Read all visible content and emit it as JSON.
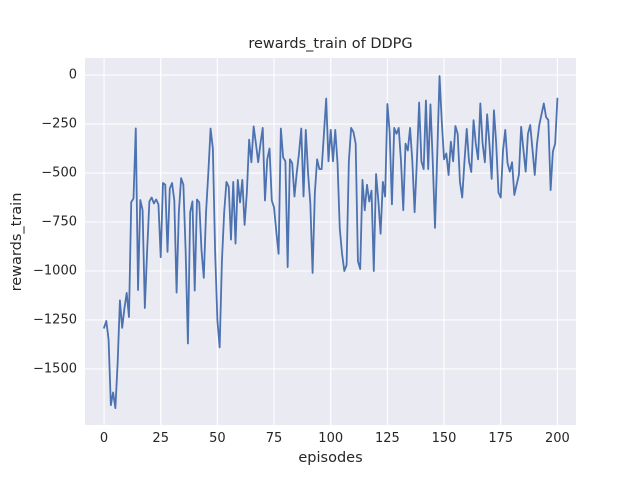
{
  "chart_data": {
    "type": "line",
    "title": "rewards_train of DDPG",
    "xlabel": "episodes",
    "ylabel": "rewards_train",
    "x_ticks": [
      0,
      25,
      50,
      75,
      100,
      125,
      150,
      175,
      200
    ],
    "y_ticks": [
      0,
      -250,
      -500,
      -750,
      -1000,
      -1250,
      -1500
    ],
    "xlim": [
      -8.4,
      208.2
    ],
    "ylim": [
      -1786,
      87
    ],
    "grid": true,
    "legend": "none",
    "line_color": "#4c72b0",
    "axes_background": "#eaeaf2",
    "grid_color": "#ffffff",
    "text_color": "#262626",
    "x": [
      0,
      1,
      2,
      3,
      4,
      5,
      6,
      7,
      8,
      9,
      10,
      11,
      12,
      13,
      14,
      15,
      16,
      17,
      18,
      19,
      20,
      21,
      22,
      23,
      24,
      25,
      26,
      27,
      28,
      29,
      30,
      31,
      32,
      33,
      34,
      35,
      36,
      37,
      38,
      39,
      40,
      41,
      42,
      43,
      44,
      45,
      46,
      47,
      48,
      49,
      50,
      51,
      52,
      53,
      54,
      55,
      56,
      57,
      58,
      59,
      60,
      61,
      62,
      63,
      64,
      65,
      66,
      67,
      68,
      69,
      70,
      71,
      72,
      73,
      74,
      75,
      76,
      77,
      78,
      79,
      80,
      81,
      82,
      83,
      84,
      85,
      86,
      87,
      88,
      89,
      90,
      91,
      92,
      93,
      94,
      95,
      96,
      97,
      98,
      99,
      100,
      101,
      102,
      103,
      104,
      105,
      106,
      107,
      108,
      109,
      110,
      111,
      112,
      113,
      114,
      115,
      116,
      117,
      118,
      119,
      120,
      121,
      122,
      123,
      124,
      125,
      126,
      127,
      128,
      129,
      130,
      131,
      132,
      133,
      134,
      135,
      136,
      137,
      138,
      139,
      140,
      141,
      142,
      143,
      144,
      145,
      146,
      147,
      148,
      149,
      150,
      151,
      152,
      153,
      154,
      155,
      156,
      157,
      158,
      159,
      160,
      161,
      162,
      163,
      164,
      165,
      166,
      167,
      168,
      169,
      170,
      171,
      172,
      173,
      174,
      175,
      176,
      177,
      178,
      179,
      180,
      181,
      182,
      183,
      184,
      185,
      186,
      187,
      188,
      189,
      190,
      191,
      192,
      193,
      194,
      195,
      196,
      197,
      198,
      199,
      200
    ],
    "series": [
      {
        "name": "rewards_train",
        "values": [
          -1290,
          -1255,
          -1350,
          -1685,
          -1620,
          -1700,
          -1470,
          -1150,
          -1290,
          -1190,
          -1112,
          -1235,
          -648,
          -630,
          -272,
          -1097,
          -638,
          -689,
          -1189,
          -900,
          -645,
          -625,
          -655,
          -635,
          -660,
          -930,
          -551,
          -560,
          -902,
          -580,
          -551,
          -640,
          -1110,
          -700,
          -526,
          -560,
          -900,
          -1370,
          -700,
          -645,
          -1100,
          -635,
          -650,
          -895,
          -1035,
          -700,
          -500,
          -273,
          -375,
          -900,
          -1250,
          -1390,
          -950,
          -700,
          -545,
          -570,
          -840,
          -545,
          -860,
          -535,
          -650,
          -535,
          -765,
          -600,
          -330,
          -445,
          -262,
          -350,
          -445,
          -350,
          -270,
          -640,
          -430,
          -375,
          -640,
          -676,
          -800,
          -912,
          -273,
          -420,
          -440,
          -980,
          -430,
          -450,
          -620,
          -500,
          -400,
          -273,
          -620,
          -280,
          -500,
          -655,
          -1010,
          -600,
          -430,
          -480,
          -480,
          -300,
          -120,
          -440,
          -280,
          -440,
          -280,
          -450,
          -785,
          -912,
          -1000,
          -970,
          -440,
          -270,
          -290,
          -350,
          -950,
          -990,
          -535,
          -690,
          -560,
          -645,
          -590,
          -1000,
          -505,
          -640,
          -810,
          -545,
          -620,
          -148,
          -290,
          -660,
          -270,
          -300,
          -270,
          -440,
          -690,
          -350,
          -385,
          -270,
          -440,
          -700,
          -440,
          -140,
          -440,
          -480,
          -130,
          -480,
          -150,
          -440,
          -780,
          -400,
          -5,
          -240,
          -430,
          -400,
          -510,
          -340,
          -440,
          -260,
          -300,
          -545,
          -625,
          -440,
          -275,
          -440,
          -495,
          -230,
          -350,
          -430,
          -145,
          -350,
          -445,
          -200,
          -350,
          -530,
          -180,
          -350,
          -600,
          -625,
          -385,
          -280,
          -450,
          -493,
          -445,
          -612,
          -560,
          -510,
          -264,
          -380,
          -493,
          -300,
          -255,
          -380,
          -510,
          -350,
          -255,
          -200,
          -145,
          -215,
          -230,
          -587,
          -390,
          -350,
          -120
        ]
      }
    ]
  }
}
